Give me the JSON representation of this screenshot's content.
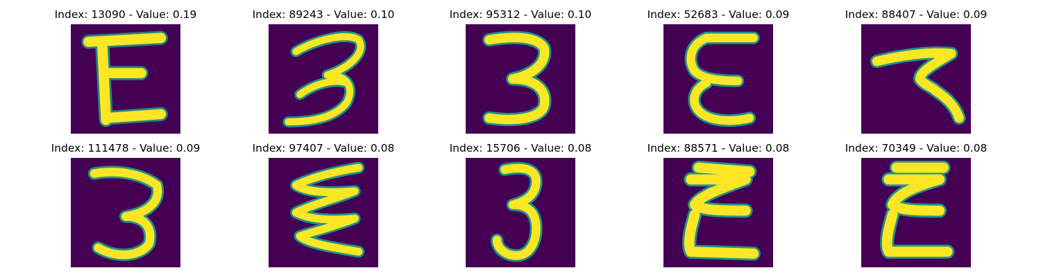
{
  "colors": {
    "background": "#440154",
    "mid": "#21918c",
    "mid_light": "#5ec962",
    "stroke": "#fde725"
  },
  "panels": [
    {
      "title": "Index: 13090 - Value: 0.19",
      "index": 13090,
      "value": 0.19,
      "glyph": "E"
    },
    {
      "title": "Index: 89243 - Value: 0.10",
      "index": 89243,
      "value": 0.1,
      "glyph": "3"
    },
    {
      "title": "Index: 95312 - Value: 0.10",
      "index": 95312,
      "value": 0.1,
      "glyph": "3"
    },
    {
      "title": "Index: 52683 - Value: 0.09",
      "index": 52683,
      "value": 0.09,
      "glyph": "E"
    },
    {
      "title": "Index: 88407 - Value: 0.09",
      "index": 88407,
      "value": 0.09,
      "glyph": "7"
    },
    {
      "title": "Index: 111478 - Value: 0.09",
      "index": 111478,
      "value": 0.09,
      "glyph": "3"
    },
    {
      "title": "Index: 97407 - Value: 0.08",
      "index": 97407,
      "value": 0.08,
      "glyph": "E"
    },
    {
      "title": "Index: 15706 - Value: 0.08",
      "index": 15706,
      "value": 0.08,
      "glyph": "3"
    },
    {
      "title": "Index: 88571 - Value: 0.08",
      "index": 88571,
      "value": 0.08,
      "glyph": "E"
    },
    {
      "title": "Index: 70349 - Value: 0.08",
      "index": 70349,
      "value": 0.08,
      "glyph": "E"
    }
  ]
}
